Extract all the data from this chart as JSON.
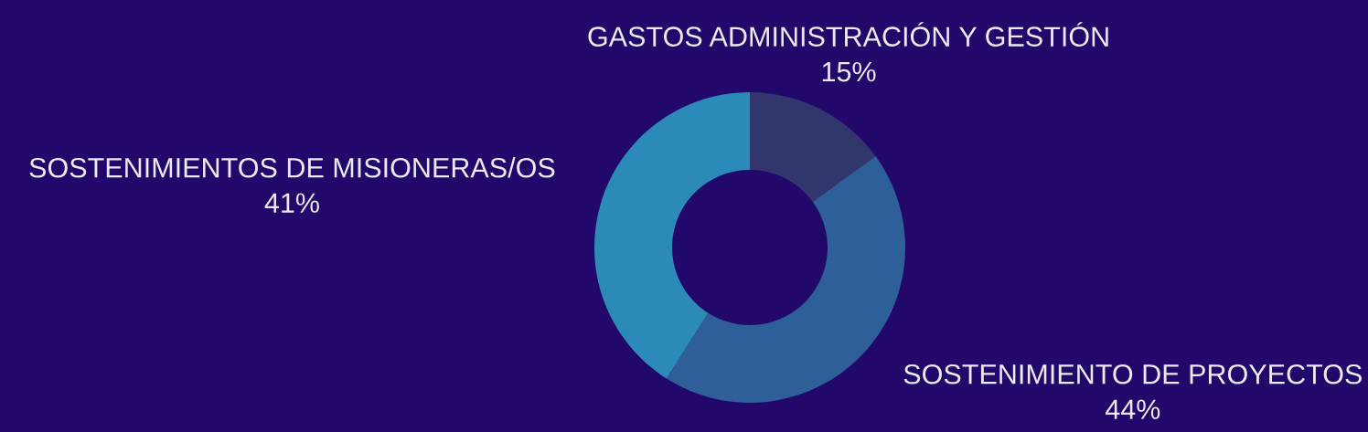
{
  "chart_data": {
    "type": "donut",
    "categories": [
      "GASTOS ADMINISTRACIÓN Y GESTIÓN",
      "SOSTENIMIENTO DE PROYECTOS",
      "SOSTENIMIENTOS DE MISIONERAS/OS"
    ],
    "values": [
      15,
      44,
      41
    ],
    "colors": [
      "#31366c",
      "#2e5f99",
      "#2b8ab8"
    ],
    "value_labels": [
      "15%",
      "44%",
      "41%"
    ],
    "legend": false
  }
}
